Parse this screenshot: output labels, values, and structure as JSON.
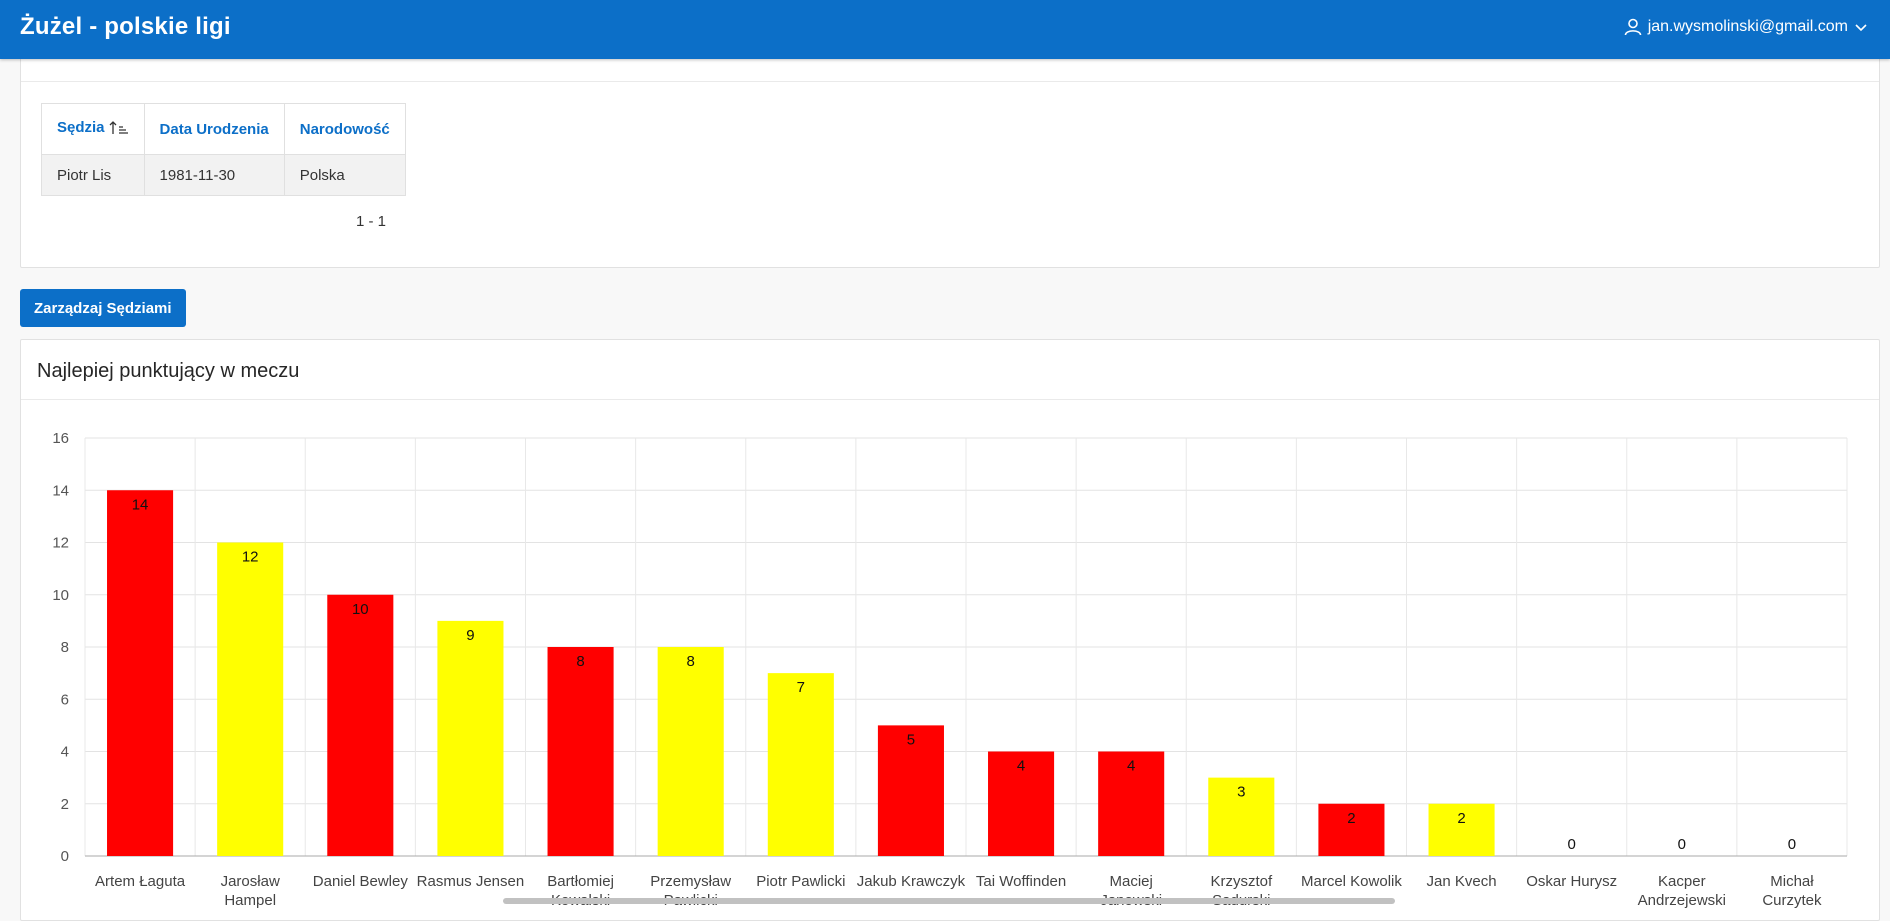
{
  "app": {
    "title": "Żużel - polskie ligi",
    "user_email": "jan.wysmolinski@gmail.com",
    "brand_color": "#0c6fc8"
  },
  "referees": {
    "columns": [
      "Sędzia",
      "Data Urodzenia",
      "Narodowość"
    ],
    "rows": [
      [
        "Piotr Lis",
        "1981-11-30",
        "Polska"
      ]
    ],
    "pagination": "1 - 1",
    "sort_icon": "sort-ascending-icon"
  },
  "manage_button": {
    "label": "Zarządzaj Sędziami"
  },
  "chart_section": {
    "title": "Najlepiej punktujący w meczu"
  },
  "chart_data": {
    "type": "bar",
    "categories": [
      "Artem Łaguta",
      "Jarosław Hampel",
      "Daniel Bewley",
      "Rasmus Jensen",
      "Bartłomiej Kowalski",
      "Przemysław Pawlicki",
      "Piotr Pawlicki",
      "Jakub Krawczyk",
      "Tai Woffinden",
      "Maciej Janowski",
      "Krzysztof Sadurski",
      "Marcel Kowolik",
      "Jan Kvech",
      "Oskar Hurysz",
      "Kacper Andrzejewski",
      "Michał Curzytek"
    ],
    "values": [
      14,
      12,
      10,
      9,
      8,
      8,
      7,
      5,
      4,
      4,
      3,
      2,
      2,
      0,
      0,
      0
    ],
    "colors": [
      "#ff0000",
      "#ffff00",
      "#ff0000",
      "#ffff00",
      "#ff0000",
      "#ffff00",
      "#ffff00",
      "#ff0000",
      "#ff0000",
      "#ff0000",
      "#ffff00",
      "#ff0000",
      "#ffff00",
      "#ff0000",
      "#ff0000",
      "#ff0000"
    ],
    "ylim": [
      0,
      16
    ],
    "yticks": [
      0,
      2,
      4,
      6,
      8,
      10,
      12,
      14,
      16
    ],
    "data_labels": true,
    "grid": true,
    "legend": "none"
  }
}
